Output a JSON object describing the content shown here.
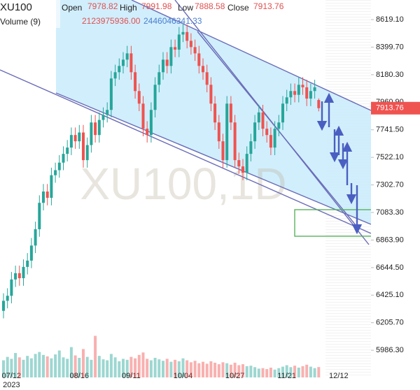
{
  "chart_data": {
    "type": "candlestick",
    "symbol": "XU100",
    "watermark": "XU100,1D",
    "header": {
      "open_label": "Open",
      "open": "7978.82",
      "high_label": "High",
      "high": "7991.98",
      "low_label": "Low",
      "low": "7888.58",
      "close_label": "Close",
      "close": "7913.76",
      "volume_label": "Volume (9)",
      "volume": "2123975936.00",
      "volume_ma": "2446046341.33"
    },
    "categories": [
      null,
      null,
      "07/12",
      null,
      null,
      null,
      null,
      null,
      null,
      null,
      null,
      null,
      null,
      null,
      null,
      null,
      null,
      null,
      null,
      "08/16",
      null,
      null,
      null,
      null,
      null,
      null,
      null,
      null,
      null,
      null,
      null,
      null,
      "09/11",
      null,
      null,
      null,
      null,
      null,
      null,
      null,
      null,
      null,
      null,
      null,
      null,
      "10/04",
      null,
      null,
      null,
      null,
      null,
      null,
      null,
      null,
      null,
      null,
      null,
      null,
      "10/27",
      null,
      null,
      null,
      null,
      null,
      null,
      null,
      null,
      null,
      null,
      null,
      null,
      "11/21",
      null,
      null,
      null,
      null,
      null,
      null,
      null,
      null,
      null,
      null,
      null,
      null,
      "12/12",
      null
    ],
    "year_label": "2023",
    "open": [
      6300,
      6380,
      6420,
      6550,
      6600,
      6560,
      6650,
      6700,
      6820,
      6950,
      7160,
      7250,
      7200,
      7380,
      7420,
      7480,
      7550,
      7600,
      7700,
      7650,
      7720,
      7500,
      7620,
      7800,
      7700,
      7820,
      7860,
      7900,
      8150,
      8200,
      8250,
      8300,
      8350,
      8200,
      8050,
      7950,
      7750,
      7700,
      7900,
      8100,
      8200,
      8300,
      8250,
      8400,
      8380,
      8500,
      8520,
      8450,
      8400,
      8350,
      8250,
      8200,
      8100,
      7950,
      7800,
      7650,
      7500,
      7950,
      7800,
      7500,
      7450,
      7400,
      7550,
      7650,
      7800,
      7880,
      7750,
      7700,
      7600,
      7750,
      7800,
      7950,
      8000,
      8050,
      8020,
      8100,
      8080,
      7990,
      8050,
      7978.82,
      null,
      null,
      null,
      null,
      null,
      null
    ],
    "high": [
      6440,
      6480,
      6610,
      6660,
      6660,
      6710,
      6760,
      6880,
      7010,
      7220,
      7310,
      7310,
      7440,
      7480,
      7540,
      7610,
      7660,
      7760,
      7760,
      7780,
      7780,
      7680,
      7860,
      7860,
      7880,
      7920,
      7960,
      8210,
      8260,
      8310,
      8360,
      8410,
      8410,
      8260,
      8110,
      8010,
      7810,
      7960,
      8160,
      8260,
      8360,
      8360,
      8460,
      8460,
      8560,
      8580,
      8580,
      8510,
      8460,
      8410,
      8310,
      8260,
      8160,
      8010,
      7860,
      7710,
      8010,
      8010,
      7860,
      7560,
      7510,
      7610,
      7710,
      7860,
      7940,
      7940,
      7810,
      7760,
      7810,
      7860,
      8010,
      8060,
      8110,
      8110,
      8160,
      8160,
      8140,
      8110,
      8140,
      7991.98,
      null,
      null,
      null,
      null,
      null,
      null
    ],
    "low": [
      6240,
      6320,
      6360,
      6490,
      6500,
      6500,
      6590,
      6640,
      6760,
      6890,
      7100,
      7140,
      7140,
      7320,
      7360,
      7420,
      7490,
      7540,
      7590,
      7590,
      7440,
      7440,
      7560,
      7640,
      7640,
      7760,
      7800,
      7840,
      8090,
      8140,
      8190,
      8240,
      8140,
      7990,
      7890,
      7690,
      7640,
      7640,
      7840,
      8040,
      8140,
      8190,
      8190,
      8320,
      8320,
      8440,
      8390,
      8340,
      8290,
      8190,
      8140,
      8040,
      7890,
      7740,
      7590,
      7440,
      7440,
      7740,
      7440,
      7390,
      7340,
      7340,
      7490,
      7590,
      7740,
      7690,
      7640,
      7540,
      7540,
      7690,
      7740,
      7890,
      7940,
      7960,
      7960,
      8020,
      7930,
      7930,
      7990,
      7888.58,
      null,
      null,
      null,
      null,
      null,
      null
    ],
    "close": [
      6380,
      6420,
      6550,
      6600,
      6560,
      6650,
      6700,
      6820,
      6950,
      7160,
      7250,
      7200,
      7380,
      7420,
      7480,
      7550,
      7600,
      7700,
      7650,
      7720,
      7500,
      7620,
      7800,
      7700,
      7820,
      7860,
      7900,
      8150,
      8200,
      8250,
      8300,
      8350,
      8200,
      8050,
      7950,
      7750,
      7700,
      7900,
      8100,
      8200,
      8300,
      8250,
      8400,
      8380,
      8500,
      8520,
      8450,
      8400,
      8350,
      8250,
      8200,
      8100,
      7950,
      7800,
      7650,
      7500,
      7950,
      7800,
      7500,
      7450,
      7400,
      7550,
      7650,
      7800,
      7880,
      7750,
      7700,
      7600,
      7750,
      7800,
      7950,
      8000,
      8050,
      8020,
      8100,
      8080,
      7990,
      8050,
      8080,
      7913.76,
      null,
      null,
      null,
      null,
      null,
      null
    ],
    "volume": [
      3500000000,
      4200000000,
      3800000000,
      5000000000,
      4100000000,
      3600000000,
      4400000000,
      3900000000,
      4800000000,
      5200000000,
      4600000000,
      4300000000,
      3900000000,
      4700000000,
      5500000000,
      4100000000,
      3800000000,
      6200000000,
      4500000000,
      4000000000,
      5800000000,
      4200000000,
      3600000000,
      8500000000,
      4400000000,
      3700000000,
      3500000000,
      4800000000,
      4100000000,
      3300000000,
      3800000000,
      3600000000,
      4200000000,
      3900000000,
      4600000000,
      5100000000,
      3800000000,
      3500000000,
      4000000000,
      3700000000,
      3400000000,
      3800000000,
      3200000000,
      3600000000,
      3300000000,
      3900000000,
      3500000000,
      3100000000,
      3400000000,
      2900000000,
      3200000000,
      2800000000,
      3300000000,
      3000000000,
      2700000000,
      3100000000,
      2900000000,
      2600000000,
      3000000000,
      2500000000,
      2700000000,
      2300000000,
      2400000000,
      2100000000,
      1800000000,
      1900000000,
      1700000000,
      2000000000,
      1600000000,
      1900000000,
      2200000000,
      2500000000,
      2100000000,
      2400000000,
      2000000000,
      2300000000,
      2600000000,
      2200000000,
      1900000000,
      2123975936,
      null,
      null,
      null,
      null,
      null,
      null
    ],
    "ylim": [
      5770,
      8775
    ],
    "yticks": [
      {
        "value": 8619.1,
        "label": "8619.10"
      },
      {
        "value": 8399.7,
        "label": "8399.70"
      },
      {
        "value": 8180.3,
        "label": "8180.30"
      },
      {
        "value": 7960.9,
        "label": "7960.90"
      },
      {
        "value": 7741.5,
        "label": "7741.50"
      },
      {
        "value": 7522.1,
        "label": "7522.10"
      },
      {
        "value": 7302.7,
        "label": "7302.70"
      },
      {
        "value": 7083.3,
        "label": "7083.30"
      },
      {
        "value": 6863.9,
        "label": "6863.90"
      },
      {
        "value": 6644.5,
        "label": "6644.50"
      },
      {
        "value": 6425.1,
        "label": "6425.10"
      },
      {
        "value": 6205.7,
        "label": "6205.70"
      },
      {
        "value": 5986.3,
        "label": "5986.30"
      }
    ],
    "vlim": [
      0,
      10000000000
    ],
    "up_color": "#26a69a",
    "down_color": "#ef5350"
  }
}
